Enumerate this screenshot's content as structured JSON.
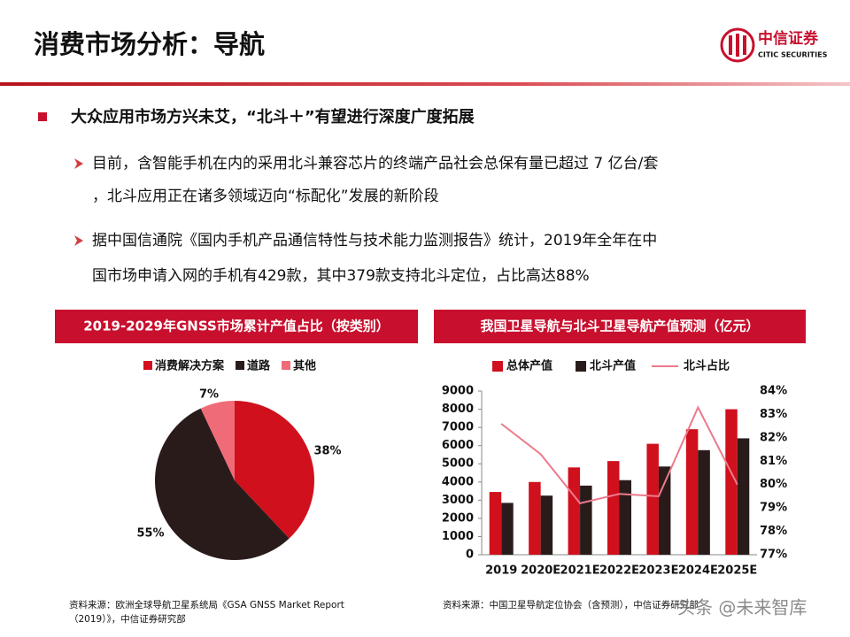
{
  "header": {
    "title": "消费市场分析：导航",
    "logo_name": "中信证券",
    "logo_subname": "CITIC SECURITIES"
  },
  "bullet": {
    "title": "大众应用市场方兴未艾，“北斗＋”有望进行深度广度拓展",
    "items": [
      [
        "目前，含智能手机在内的采用北斗兼容芯片的终端产品社会总保有量已超过 7 亿台/套",
        "，北斗应用正在诸多领域迈向“标配化”发展的新阶段"
      ],
      [
        "据中国信通院《国内手机产品通信特性与技术能力监测报告》统计，2019年全年在中",
        "国市场申请入网的手机有429款，其中379款支持北斗定位，占比高达88%"
      ]
    ]
  },
  "chart_data": [
    {
      "type": "pie",
      "title": "2019-2029年GNSS市场累计产值占比（按类别）",
      "categories": [
        "消费解决方案",
        "道路",
        "其他"
      ],
      "values": [
        38,
        55,
        7
      ],
      "value_labels": [
        "38%",
        "55%",
        "7%"
      ],
      "colors": [
        "#d0101c",
        "#2a1b1b",
        "#f06b78"
      ],
      "legend": "top",
      "source": [
        "资料来源：欧洲全球导航卫星系统局《GSA GNSS Market Report",
        "（2019）》，中信证券研究部"
      ]
    },
    {
      "type": "bar",
      "title": "我国卫星导航与北斗卫星导航产值预测（亿元）",
      "categories": [
        "2019",
        "2020E",
        "2021E",
        "2022E",
        "2023E",
        "2024E",
        "2025E"
      ],
      "series": [
        {
          "name": "总体产值",
          "color": "#d0101c",
          "values": [
            3450,
            4000,
            4800,
            5150,
            6100,
            6900,
            8000
          ]
        },
        {
          "name": "北斗产值",
          "color": "#2a1b1b",
          "values": [
            2850,
            3250,
            3800,
            4100,
            4850,
            5750,
            6400
          ]
        },
        {
          "name": "北斗占比",
          "color": "#ec7a8c",
          "axis": "y2",
          "values": [
            82.6,
            81.3,
            79.2,
            79.6,
            79.5,
            83.3,
            80.0
          ]
        }
      ],
      "ylim": [
        0,
        9000
      ],
      "yticks": [
        0,
        1000,
        2000,
        3000,
        4000,
        5000,
        6000,
        7000,
        8000,
        9000
      ],
      "y2lim": [
        77,
        84
      ],
      "y2ticks": [
        {
          "value": 77,
          "label": "77%"
        },
        {
          "value": 78,
          "label": "78%"
        },
        {
          "value": 79,
          "label": "79%"
        },
        {
          "value": 80,
          "label": "80%"
        },
        {
          "value": 81,
          "label": "81%"
        },
        {
          "value": 82,
          "label": "82%"
        },
        {
          "value": 83,
          "label": "83%"
        },
        {
          "value": 84,
          "label": "84%"
        }
      ],
      "legend": "top",
      "source": [
        "资料来源：中国卫星导航定位协会（含预测），中信证券研究部"
      ]
    }
  ],
  "watermark": "头条 @未来智库"
}
